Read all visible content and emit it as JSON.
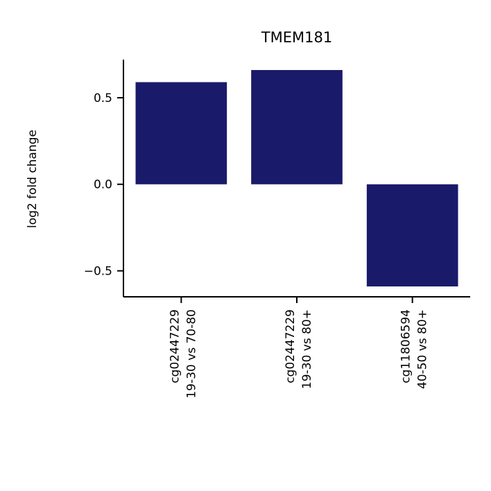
{
  "chart_data": {
    "type": "bar",
    "title": "TMEM181",
    "xlabel": "",
    "ylabel": "log2 fold change",
    "categories": [
      [
        "cg02447229",
        "19-30 vs 70-80"
      ],
      [
        "cg02447229",
        "19-30 vs 80+"
      ],
      [
        "cg11806594",
        "40-50 vs 80+"
      ]
    ],
    "values": [
      0.59,
      0.66,
      -0.59
    ],
    "yticks": [
      0.5,
      0.0,
      -0.5
    ],
    "ytick_labels": [
      "0.5",
      "0.0",
      "−0.5"
    ],
    "ylim": [
      -0.65,
      0.72
    ],
    "bar_color": "#1a1a6b",
    "grid": false,
    "legend": "none"
  }
}
